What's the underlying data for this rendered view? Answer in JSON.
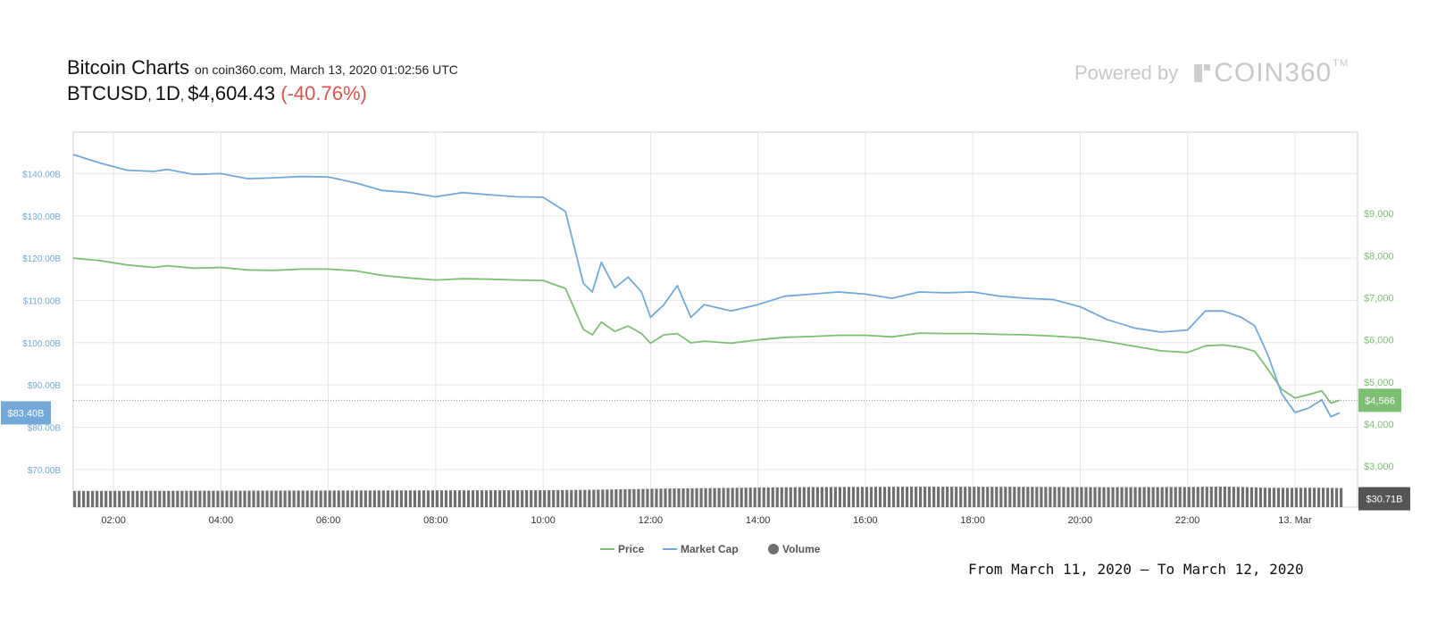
{
  "header": {
    "title": "Bitcoin Charts",
    "subtitle": "on coin360.com, March 13, 2020 01:02:56 UTC",
    "pair": "BTCUSD",
    "interval": "1D",
    "price": "$4,604.43",
    "change": "(-40.76%)"
  },
  "branding": {
    "powered_by": "Powered by",
    "logo_text": "COIN360",
    "trademark": "TM"
  },
  "footer": {
    "date_range": "From March 11, 2020 – To March 12, 2020"
  },
  "colors": {
    "price": "#7dbf73",
    "market_cap": "#73a9d8",
    "volume": "#707070",
    "grid": "#e6e6e6",
    "change": "#d9534f"
  },
  "chart_data": {
    "type": "line",
    "x_ticks": [
      "02:00",
      "04:00",
      "06:00",
      "08:00",
      "10:00",
      "12:00",
      "14:00",
      "16:00",
      "18:00",
      "20:00",
      "22:00",
      "13. Mar"
    ],
    "x_range": [
      "01:15",
      "00:50 (13. Mar)"
    ],
    "left_axis": {
      "label": "Market Cap",
      "ticks": [
        "$70.00B",
        "$80.00B",
        "$90.00B",
        "$100.00B",
        "$110.00B",
        "$120.00B",
        "$130.00B",
        "$140.00B"
      ],
      "range_billion": [
        61.1,
        149.8
      ]
    },
    "right_axis": {
      "label": "Price",
      "ticks": [
        "$3,000",
        "$4,000",
        "$5,000",
        "$6,000",
        "$7,000",
        "$8,000",
        "$9,000"
      ],
      "range": [
        2030,
        10930
      ]
    },
    "current_labels": {
      "market_cap": "$83.40B",
      "price": "$4,566",
      "volume": "$30.71B"
    },
    "legend": [
      "Price",
      "Market Cap",
      "Volume"
    ],
    "legend_position": "bottom-center",
    "grid": true,
    "series": [
      {
        "name": "Price",
        "axis": "right",
        "points": [
          [
            "01:15",
            7940
          ],
          [
            "01:45",
            7880
          ],
          [
            "02:15",
            7780
          ],
          [
            "02:45",
            7720
          ],
          [
            "03:00",
            7760
          ],
          [
            "03:30",
            7700
          ],
          [
            "04:00",
            7720
          ],
          [
            "04:30",
            7660
          ],
          [
            "05:00",
            7650
          ],
          [
            "05:30",
            7680
          ],
          [
            "06:00",
            7680
          ],
          [
            "06:30",
            7640
          ],
          [
            "07:00",
            7530
          ],
          [
            "07:30",
            7470
          ],
          [
            "08:00",
            7420
          ],
          [
            "08:30",
            7450
          ],
          [
            "09:00",
            7440
          ],
          [
            "09:30",
            7420
          ],
          [
            "10:00",
            7410
          ],
          [
            "10:25",
            7220
          ],
          [
            "10:45",
            6250
          ],
          [
            "10:55",
            6120
          ],
          [
            "11:05",
            6420
          ],
          [
            "11:20",
            6200
          ],
          [
            "11:35",
            6330
          ],
          [
            "11:50",
            6150
          ],
          [
            "12:00",
            5920
          ],
          [
            "12:15",
            6120
          ],
          [
            "12:30",
            6150
          ],
          [
            "12:45",
            5930
          ],
          [
            "13:00",
            5970
          ],
          [
            "13:30",
            5920
          ],
          [
            "14:00",
            6000
          ],
          [
            "14:30",
            6060
          ],
          [
            "15:00",
            6080
          ],
          [
            "15:30",
            6110
          ],
          [
            "16:00",
            6110
          ],
          [
            "16:30",
            6070
          ],
          [
            "17:00",
            6160
          ],
          [
            "17:30",
            6150
          ],
          [
            "18:00",
            6150
          ],
          [
            "18:30",
            6130
          ],
          [
            "19:00",
            6120
          ],
          [
            "19:30",
            6090
          ],
          [
            "20:00",
            6050
          ],
          [
            "20:30",
            5960
          ],
          [
            "21:00",
            5850
          ],
          [
            "21:30",
            5740
          ],
          [
            "22:00",
            5700
          ],
          [
            "22:20",
            5860
          ],
          [
            "22:40",
            5880
          ],
          [
            "23:00",
            5820
          ],
          [
            "23:15",
            5730
          ],
          [
            "23:30",
            5300
          ],
          [
            "23:45",
            4830
          ],
          [
            "00:00",
            4620
          ],
          [
            "00:15",
            4700
          ],
          [
            "00:30",
            4790
          ],
          [
            "00:40",
            4500
          ],
          [
            "00:50",
            4566
          ]
        ]
      },
      {
        "name": "Market Cap",
        "axis": "left",
        "points": [
          [
            "01:15",
            144.5
          ],
          [
            "01:45",
            142.5
          ],
          [
            "02:15",
            140.8
          ],
          [
            "02:45",
            140.5
          ],
          [
            "03:00",
            141.0
          ],
          [
            "03:30",
            139.8
          ],
          [
            "04:00",
            140.0
          ],
          [
            "04:30",
            138.8
          ],
          [
            "05:00",
            139.0
          ],
          [
            "05:30",
            139.3
          ],
          [
            "06:00",
            139.2
          ],
          [
            "06:30",
            137.8
          ],
          [
            "07:00",
            136.0
          ],
          [
            "07:30",
            135.5
          ],
          [
            "08:00",
            134.5
          ],
          [
            "08:30",
            135.5
          ],
          [
            "09:00",
            135.0
          ],
          [
            "09:30",
            134.5
          ],
          [
            "10:00",
            134.4
          ],
          [
            "10:25",
            131.0
          ],
          [
            "10:45",
            114.0
          ],
          [
            "10:55",
            112.0
          ],
          [
            "11:05",
            119.0
          ],
          [
            "11:20",
            113.0
          ],
          [
            "11:35",
            115.5
          ],
          [
            "11:50",
            112.0
          ],
          [
            "12:00",
            106.0
          ],
          [
            "12:15",
            109.0
          ],
          [
            "12:30",
            113.5
          ],
          [
            "12:45",
            106.0
          ],
          [
            "13:00",
            109.0
          ],
          [
            "13:30",
            107.5
          ],
          [
            "14:00",
            109.0
          ],
          [
            "14:30",
            111.0
          ],
          [
            "15:00",
            111.5
          ],
          [
            "15:30",
            112.0
          ],
          [
            "16:00",
            111.5
          ],
          [
            "16:30",
            110.5
          ],
          [
            "17:00",
            112.0
          ],
          [
            "17:30",
            111.8
          ],
          [
            "18:00",
            112.0
          ],
          [
            "18:30",
            111.0
          ],
          [
            "19:00",
            110.5
          ],
          [
            "19:30",
            110.2
          ],
          [
            "20:00",
            108.5
          ],
          [
            "20:30",
            105.5
          ],
          [
            "21:00",
            103.5
          ],
          [
            "21:30",
            102.5
          ],
          [
            "22:00",
            103.0
          ],
          [
            "22:20",
            107.5
          ],
          [
            "22:40",
            107.5
          ],
          [
            "23:00",
            106.0
          ],
          [
            "23:15",
            104.0
          ],
          [
            "23:30",
            97.0
          ],
          [
            "23:45",
            88.0
          ],
          [
            "00:00",
            83.5
          ],
          [
            "00:15",
            84.5
          ],
          [
            "00:30",
            86.5
          ],
          [
            "00:40",
            82.5
          ],
          [
            "00:50",
            83.4
          ]
        ]
      },
      {
        "name": "Volume",
        "axis": "volume",
        "points": [
          [
            "01:15",
            26.0
          ],
          [
            "03:00",
            26.2
          ],
          [
            "05:00",
            26.5
          ],
          [
            "07:00",
            26.8
          ],
          [
            "09:00",
            27.0
          ],
          [
            "10:00",
            27.1
          ],
          [
            "11:00",
            28.0
          ],
          [
            "12:00",
            29.5
          ],
          [
            "13:00",
            30.5
          ],
          [
            "14:00",
            31.5
          ],
          [
            "15:00",
            32.2
          ],
          [
            "17:00",
            32.8
          ],
          [
            "19:00",
            32.6
          ],
          [
            "20:30",
            32.0
          ],
          [
            "22:00",
            32.4
          ],
          [
            "22:40",
            33.0
          ],
          [
            "23:30",
            31.0
          ],
          [
            "00:30",
            31.2
          ],
          [
            "00:50",
            30.71
          ]
        ]
      }
    ]
  }
}
